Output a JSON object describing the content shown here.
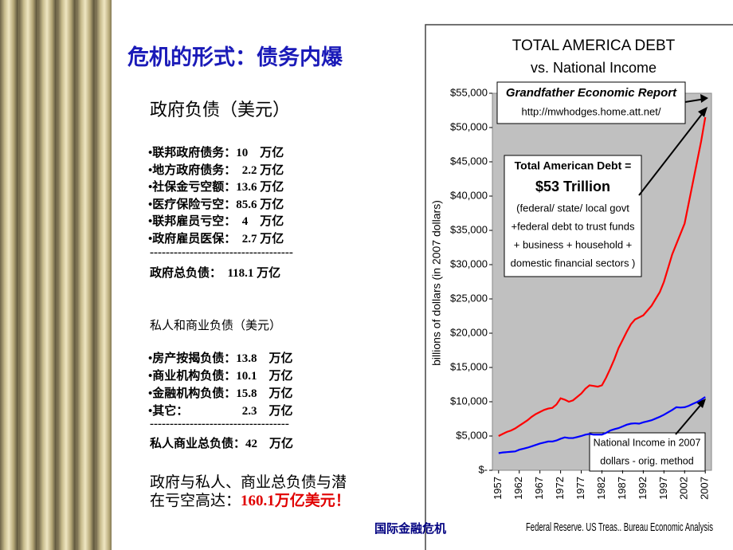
{
  "slide": {
    "title": "危机的形式：债务内爆",
    "gov_heading": "政府负债（美元）",
    "gov_items": [
      "•联邦政府债务：10　万亿",
      "•地方政府债务：　2.2 万亿",
      "•社保金亏空额：13.6 万亿",
      "•医疗保险亏空：85.6 万亿",
      "•联邦雇员亏空：　4　万亿",
      "•政府雇员医保：　2.7 万亿"
    ],
    "gov_separator": "------------------------------------",
    "gov_total": "政府总负债：　118.1 万亿",
    "private_heading": "私人和商业负债（美元）",
    "private_items": [
      "•房产按揭负债：13.8　万亿",
      "•商业机构负债：10.1　万亿",
      "•金融机构负债：15.8　万亿",
      "•其它：　　　　　2.3　万亿"
    ],
    "private_separator": "-----------------------------------",
    "private_total": "私人商业总负债：42　万亿",
    "conclusion_line1": "政府与私人、商业总负债与潜",
    "conclusion_line2": "在亏空高达：",
    "conclusion_highlight": "160.1万亿美元！",
    "footer": "国际金融危机"
  },
  "chart_data": {
    "type": "line",
    "title": "TOTAL AMERICA DEBT",
    "subtitle": "vs. National Income",
    "y_label": "billions of dollars (in 2007 dollars)",
    "source": "Federal Reserve. US Treas.. Bureau Economic Analysis",
    "annotations": [
      "Grandfather Economic Report",
      "http://mwhodges.home.att.net/",
      "Total American Debt =",
      "$53 Trillion",
      "(federal/ state/ local govt",
      "+federal debt to trust funds",
      "+ business + household +",
      "domestic financial sectors )",
      "National Income in 2007",
      "dollars - orig. method"
    ],
    "x": [
      1957,
      1958,
      1959,
      1960,
      1961,
      1962,
      1963,
      1964,
      1965,
      1966,
      1967,
      1968,
      1969,
      1970,
      1971,
      1972,
      1973,
      1974,
      1975,
      1976,
      1977,
      1978,
      1979,
      1980,
      1981,
      1982,
      1983,
      1984,
      1985,
      1986,
      1987,
      1988,
      1989,
      1990,
      1991,
      1992,
      1993,
      1994,
      1995,
      1996,
      1997,
      1998,
      1999,
      2000,
      2001,
      2002,
      2003,
      2004,
      2005,
      2006,
      2007
    ],
    "series": [
      {
        "color": "#ff0000",
        "values": [
          5000,
          5300,
          5600,
          5800,
          6100,
          6500,
          6900,
          7300,
          7800,
          8200,
          8500,
          8800,
          9000,
          9100,
          9600,
          10500,
          10300,
          10000,
          10200,
          10700,
          11200,
          11900,
          12400,
          12300,
          12200,
          12400,
          13500,
          14800,
          16200,
          17800,
          19000,
          20200,
          21300,
          22000,
          22300,
          22600,
          23300,
          24000,
          25000,
          26000,
          27500,
          29500,
          31500,
          33000,
          34500,
          36000,
          39000,
          42000,
          45000,
          48000,
          51500
        ]
      },
      {
        "color": "#0000ff",
        "values": [
          2500,
          2600,
          2650,
          2700,
          2750,
          3000,
          3150,
          3300,
          3500,
          3700,
          3900,
          4050,
          4200,
          4200,
          4350,
          4600,
          4800,
          4700,
          4700,
          4850,
          5000,
          5200,
          5300,
          5200,
          5200,
          5200,
          5450,
          5800,
          6000,
          6150,
          6400,
          6650,
          6800,
          6850,
          6800,
          7000,
          7150,
          7300,
          7550,
          7800,
          8100,
          8450,
          8800,
          9200,
          9150,
          9200,
          9400,
          9700,
          9950,
          10300,
          10700
        ]
      }
    ],
    "xlim": [
      1955.5,
      2008.5
    ],
    "xticks": [
      1957,
      1962,
      1967,
      1972,
      1977,
      1982,
      1987,
      1992,
      1997,
      2002,
      2007
    ],
    "ylim": [
      0,
      55000
    ],
    "yticks": [
      {
        "value": 0,
        "label": "$-"
      },
      {
        "value": 5000,
        "label": "$5,000"
      },
      {
        "value": 10000,
        "label": "$10,000"
      },
      {
        "value": 15000,
        "label": "$15,000"
      },
      {
        "value": 20000,
        "label": "$20,000"
      },
      {
        "value": 25000,
        "label": "$25,000"
      },
      {
        "value": 30000,
        "label": "$30,000"
      },
      {
        "value": 35000,
        "label": "$35,000"
      },
      {
        "value": 40000,
        "label": "$40,000"
      },
      {
        "value": 45000,
        "label": "$45,000"
      },
      {
        "value": 50000,
        "label": "$50,000"
      },
      {
        "value": 55000,
        "label": "$55,000"
      }
    ],
    "grid": false
  }
}
